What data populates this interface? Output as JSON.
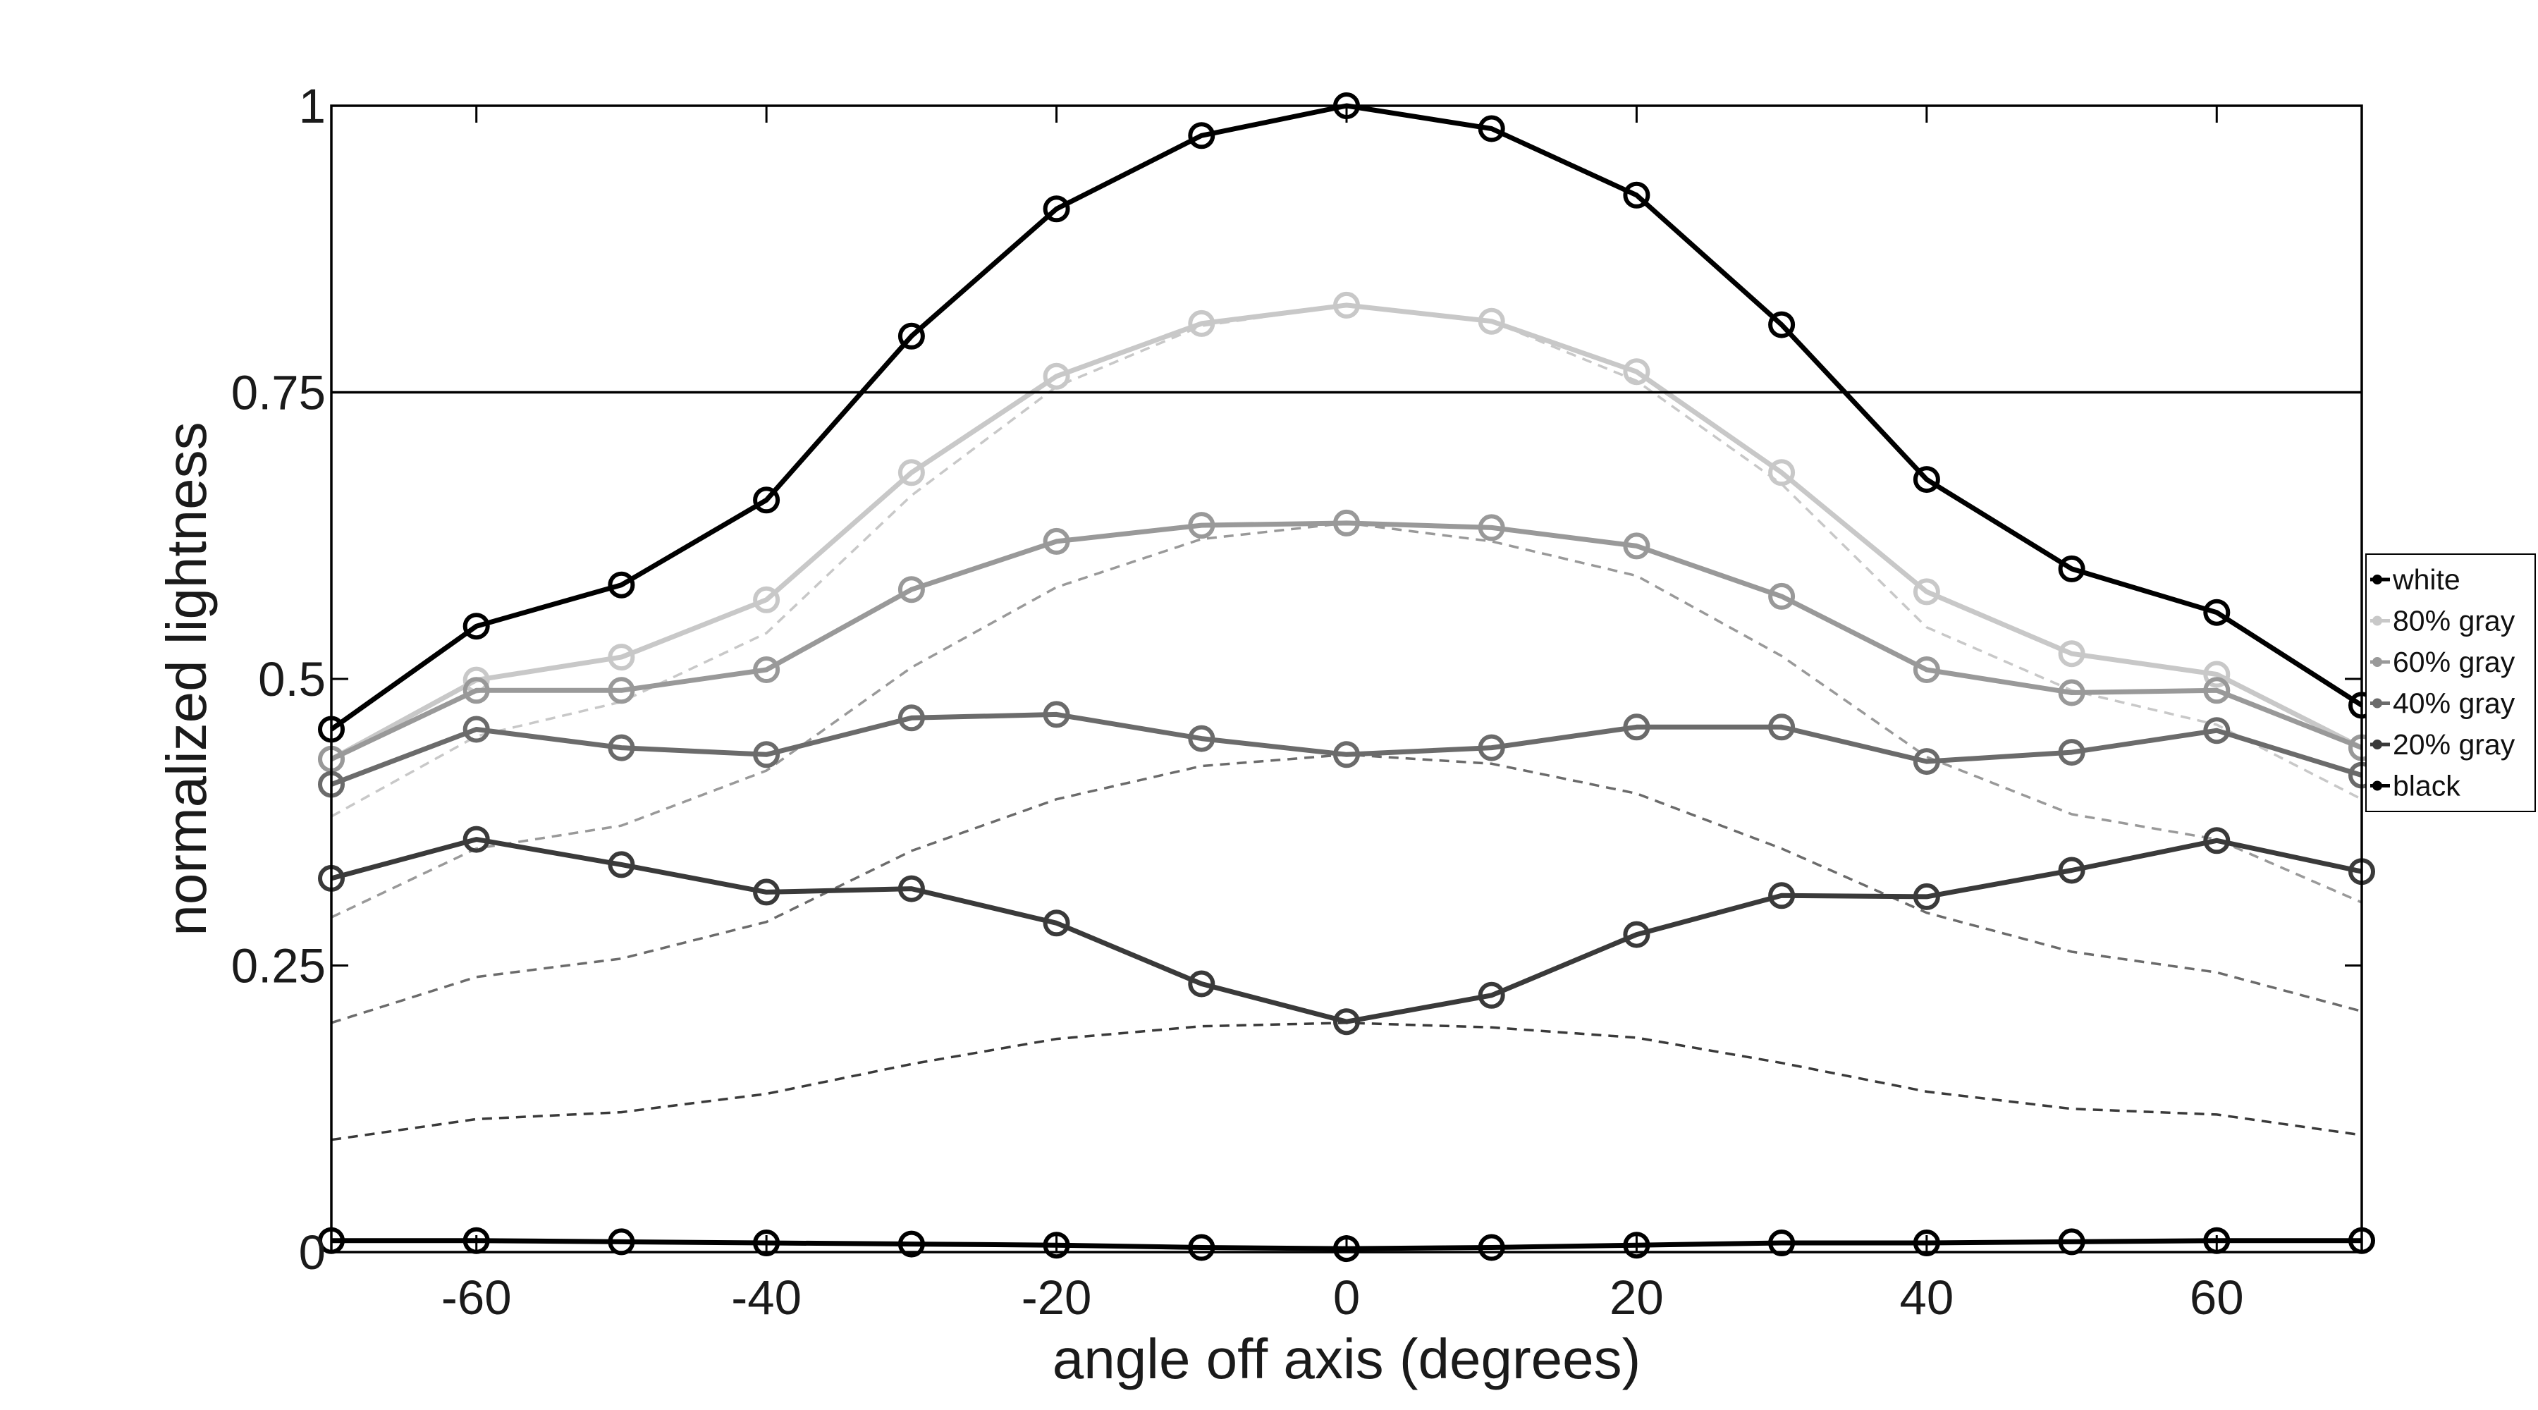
{
  "chart_data": {
    "type": "line",
    "title": "",
    "xlabel": "angle off axis (degrees)",
    "ylabel": "normalized lightness",
    "xlim": [
      -70,
      70
    ],
    "ylim": [
      0,
      1
    ],
    "x": [
      -70,
      -60,
      -50,
      -40,
      -30,
      -20,
      -10,
      0,
      10,
      20,
      30,
      40,
      50,
      60,
      70
    ],
    "x_ticks": [
      -60,
      -40,
      -20,
      0,
      20,
      40,
      60
    ],
    "x_tick_labels": [
      "-60",
      "-40",
      "-20",
      "0",
      "20",
      "40",
      "60"
    ],
    "y_ticks": [
      0,
      0.25,
      0.5,
      0.75,
      1
    ],
    "y_tick_labels": [
      "0",
      "0.25",
      "0.5",
      "0.75",
      "1"
    ],
    "reference_line": 0.75,
    "grid": false,
    "legend_position": "right",
    "series": [
      {
        "name": "white",
        "color": "#000000",
        "values": [
          0.456,
          0.546,
          0.582,
          0.656,
          0.799,
          0.91,
          0.974,
          1.0,
          0.98,
          0.922,
          0.809,
          0.674,
          0.596,
          0.558,
          0.477
        ]
      },
      {
        "name": "80% gray",
        "color": "#c8c8c8",
        "values": [
          0.43,
          0.499,
          0.519,
          0.569,
          0.68,
          0.764,
          0.81,
          0.826,
          0.812,
          0.768,
          0.68,
          0.576,
          0.522,
          0.504,
          0.44
        ]
      },
      {
        "name": "60% gray",
        "color": "#999999",
        "values": [
          0.43,
          0.49,
          0.49,
          0.508,
          0.578,
          0.62,
          0.634,
          0.636,
          0.632,
          0.616,
          0.572,
          0.508,
          0.488,
          0.49,
          0.44
        ]
      },
      {
        "name": "40% gray",
        "color": "#6b6b6b",
        "values": [
          0.408,
          0.456,
          0.44,
          0.434,
          0.466,
          0.469,
          0.448,
          0.434,
          0.44,
          0.458,
          0.458,
          0.428,
          0.436,
          0.455,
          0.416
        ]
      },
      {
        "name": "20% gray",
        "color": "#3a3a3a",
        "values": [
          0.326,
          0.36,
          0.338,
          0.314,
          0.317,
          0.287,
          0.234,
          0.201,
          0.224,
          0.277,
          0.311,
          0.31,
          0.333,
          0.359,
          0.332
        ]
      },
      {
        "name": "black",
        "color": "#000000",
        "values": [
          0.01,
          0.01,
          0.009,
          0.008,
          0.007,
          0.006,
          0.004,
          0.003,
          0.004,
          0.006,
          0.008,
          0.008,
          0.009,
          0.01,
          0.01
        ]
      }
    ],
    "reference_series": [
      {
        "color": "#c8c8c8",
        "values": [
          0.38,
          0.45,
          0.48,
          0.54,
          0.66,
          0.755,
          0.808,
          0.826,
          0.812,
          0.76,
          0.67,
          0.545,
          0.49,
          0.46,
          0.395
        ]
      },
      {
        "color": "#999999",
        "values": [
          0.292,
          0.352,
          0.372,
          0.42,
          0.51,
          0.58,
          0.622,
          0.636,
          0.62,
          0.59,
          0.52,
          0.432,
          0.382,
          0.36,
          0.305
        ]
      },
      {
        "color": "#6b6b6b",
        "values": [
          0.2,
          0.24,
          0.256,
          0.288,
          0.35,
          0.395,
          0.424,
          0.434,
          0.426,
          0.4,
          0.352,
          0.296,
          0.262,
          0.244,
          0.21
        ]
      },
      {
        "color": "#3a3a3a",
        "values": [
          0.098,
          0.116,
          0.122,
          0.138,
          0.164,
          0.186,
          0.197,
          0.2,
          0.196,
          0.187,
          0.165,
          0.14,
          0.125,
          0.12,
          0.102
        ]
      }
    ]
  }
}
